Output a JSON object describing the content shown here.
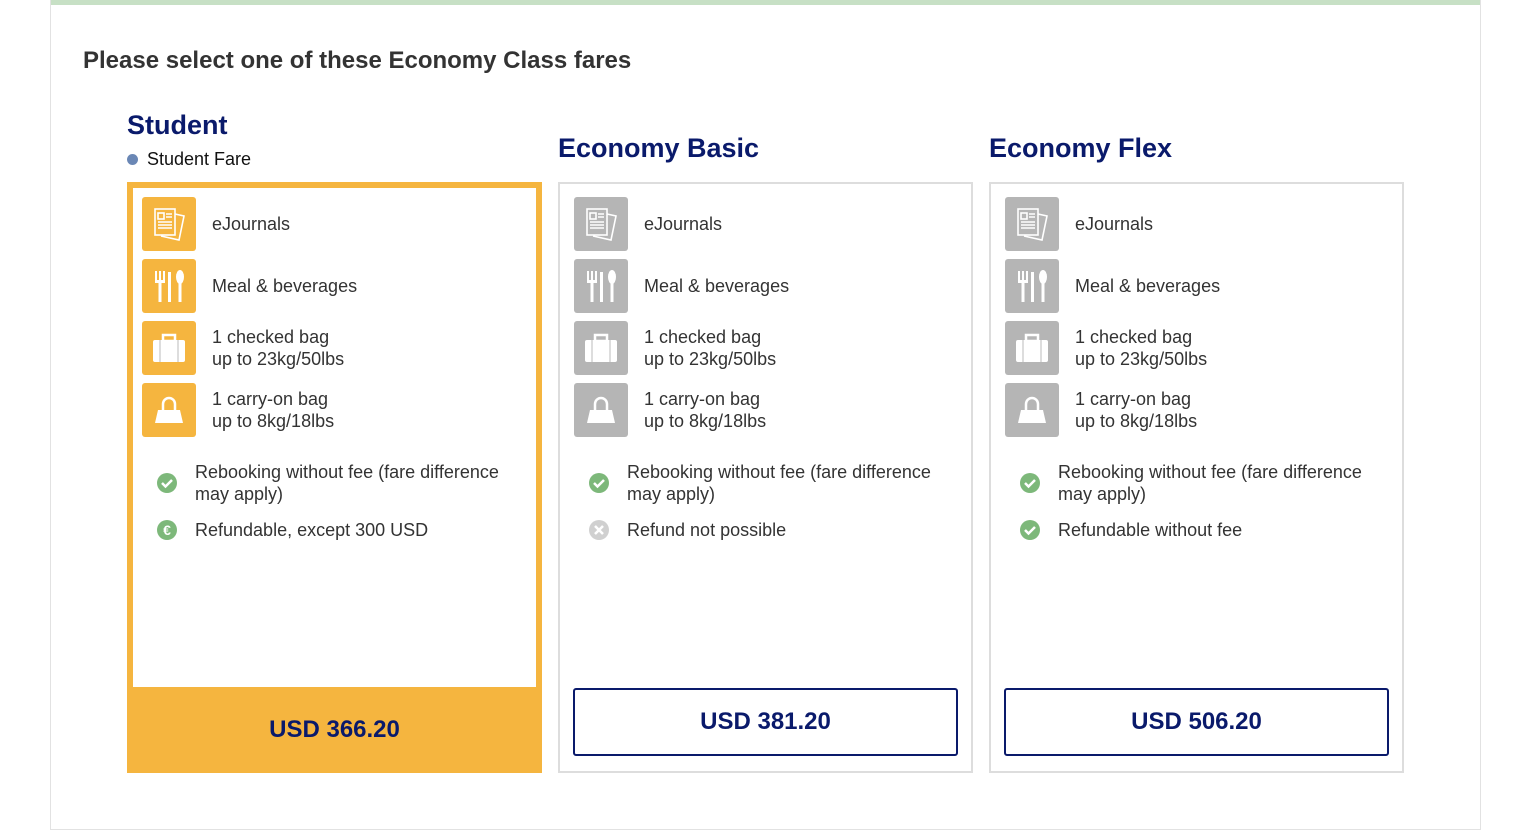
{
  "heading": "Please select one of these Economy Class fares",
  "colors": {
    "accent": "#f5b53f",
    "navy": "#0a1a6b",
    "check": "#7db87a",
    "disabled": "#d0d0d0"
  },
  "fares": [
    {
      "title": "Student",
      "subtitle": "Student Fare",
      "selected": true,
      "features": [
        "eJournals",
        "Meal & beverages",
        "1 checked bag",
        "up to 23kg/50lbs",
        "1 carry-on bag",
        "up to 8kg/18lbs"
      ],
      "conditions": [
        {
          "icon": "check-icon",
          "l1": "Rebooking without fee (fare difference",
          "l2": "may apply)"
        },
        {
          "icon": "euro-icon",
          "l1": "Refundable, except 300 USD"
        }
      ],
      "price": "USD 366.20"
    },
    {
      "title": "Economy Basic",
      "selected": false,
      "features": [
        "eJournals",
        "Meal & beverages",
        "1 checked bag",
        "up to 23kg/50lbs",
        "1 carry-on bag",
        "up to 8kg/18lbs"
      ],
      "conditions": [
        {
          "icon": "check-icon",
          "l1": "Rebooking without fee (fare difference",
          "l2": "may apply)"
        },
        {
          "icon": "cross-icon",
          "l1": "Refund not possible"
        }
      ],
      "price": "USD 381.20"
    },
    {
      "title": "Economy Flex",
      "selected": false,
      "features": [
        "eJournals",
        "Meal & beverages",
        "1 checked bag",
        "up to 23kg/50lbs",
        "1 carry-on bag",
        "up to 8kg/18lbs"
      ],
      "conditions": [
        {
          "icon": "check-icon",
          "l1": "Rebooking without fee (fare difference",
          "l2": "may apply)"
        },
        {
          "icon": "check-icon",
          "l1": "Refundable without fee"
        }
      ],
      "price": "USD 506.20"
    }
  ]
}
